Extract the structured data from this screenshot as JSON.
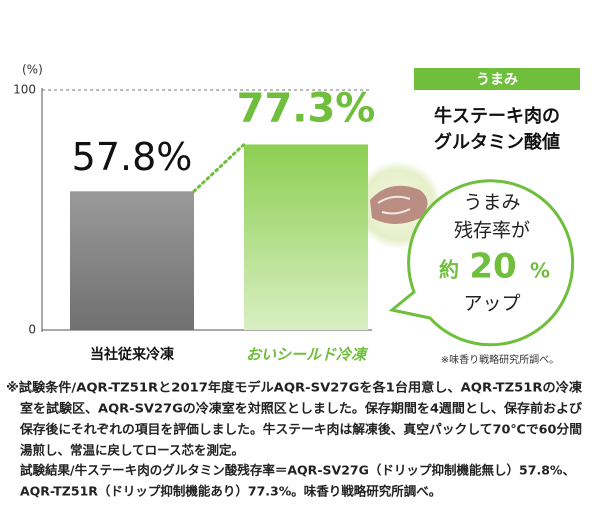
{
  "chart_data": {
    "type": "bar",
    "y_label": "(%)",
    "categories": [
      "当社従来冷凍",
      "おいシールド冷凍"
    ],
    "values": [
      57.8,
      77.3
    ],
    "value_labels": [
      "57.8%",
      "77.3%"
    ],
    "colors": [
      "#8c8c8c",
      "#6fbe3c"
    ],
    "ylim": [
      0,
      100
    ],
    "yticks": [
      0,
      100
    ],
    "grid": true
  },
  "panel": {
    "badge": "うまみ",
    "heading": [
      "牛ステーキ肉の",
      "グルタミン酸値"
    ],
    "bubble": [
      "うまみ",
      "残存率が",
      "約",
      "20",
      "%",
      "アップ"
    ],
    "source": "※味香り戦略研究所調べ。"
  },
  "footnote": [
    "※試験条件/AQR-TZ51Rと2017年度モデルAQR-SV27Gを各1台用意し、AQR-TZ51Rの冷凍",
    "室を試験区、AQR-SV27Gの冷凍室を対照区としました。保存期間を4週間とし、保存前および",
    "保存後にそれぞれの項目を評価しました。牛ステーキ肉は解凍後、真空パックして70℃で60分間",
    "湯煎し、常温に戻してロース芯を測定。",
    "試験結果/牛ステーキ肉のグルタミン酸残存率＝AQR-SV27G（ドリップ抑制機能無し）57.8%、",
    "AQR-TZ51R（ドリップ抑制機能あり）77.3%。味香り戦略研究所調べ。"
  ]
}
